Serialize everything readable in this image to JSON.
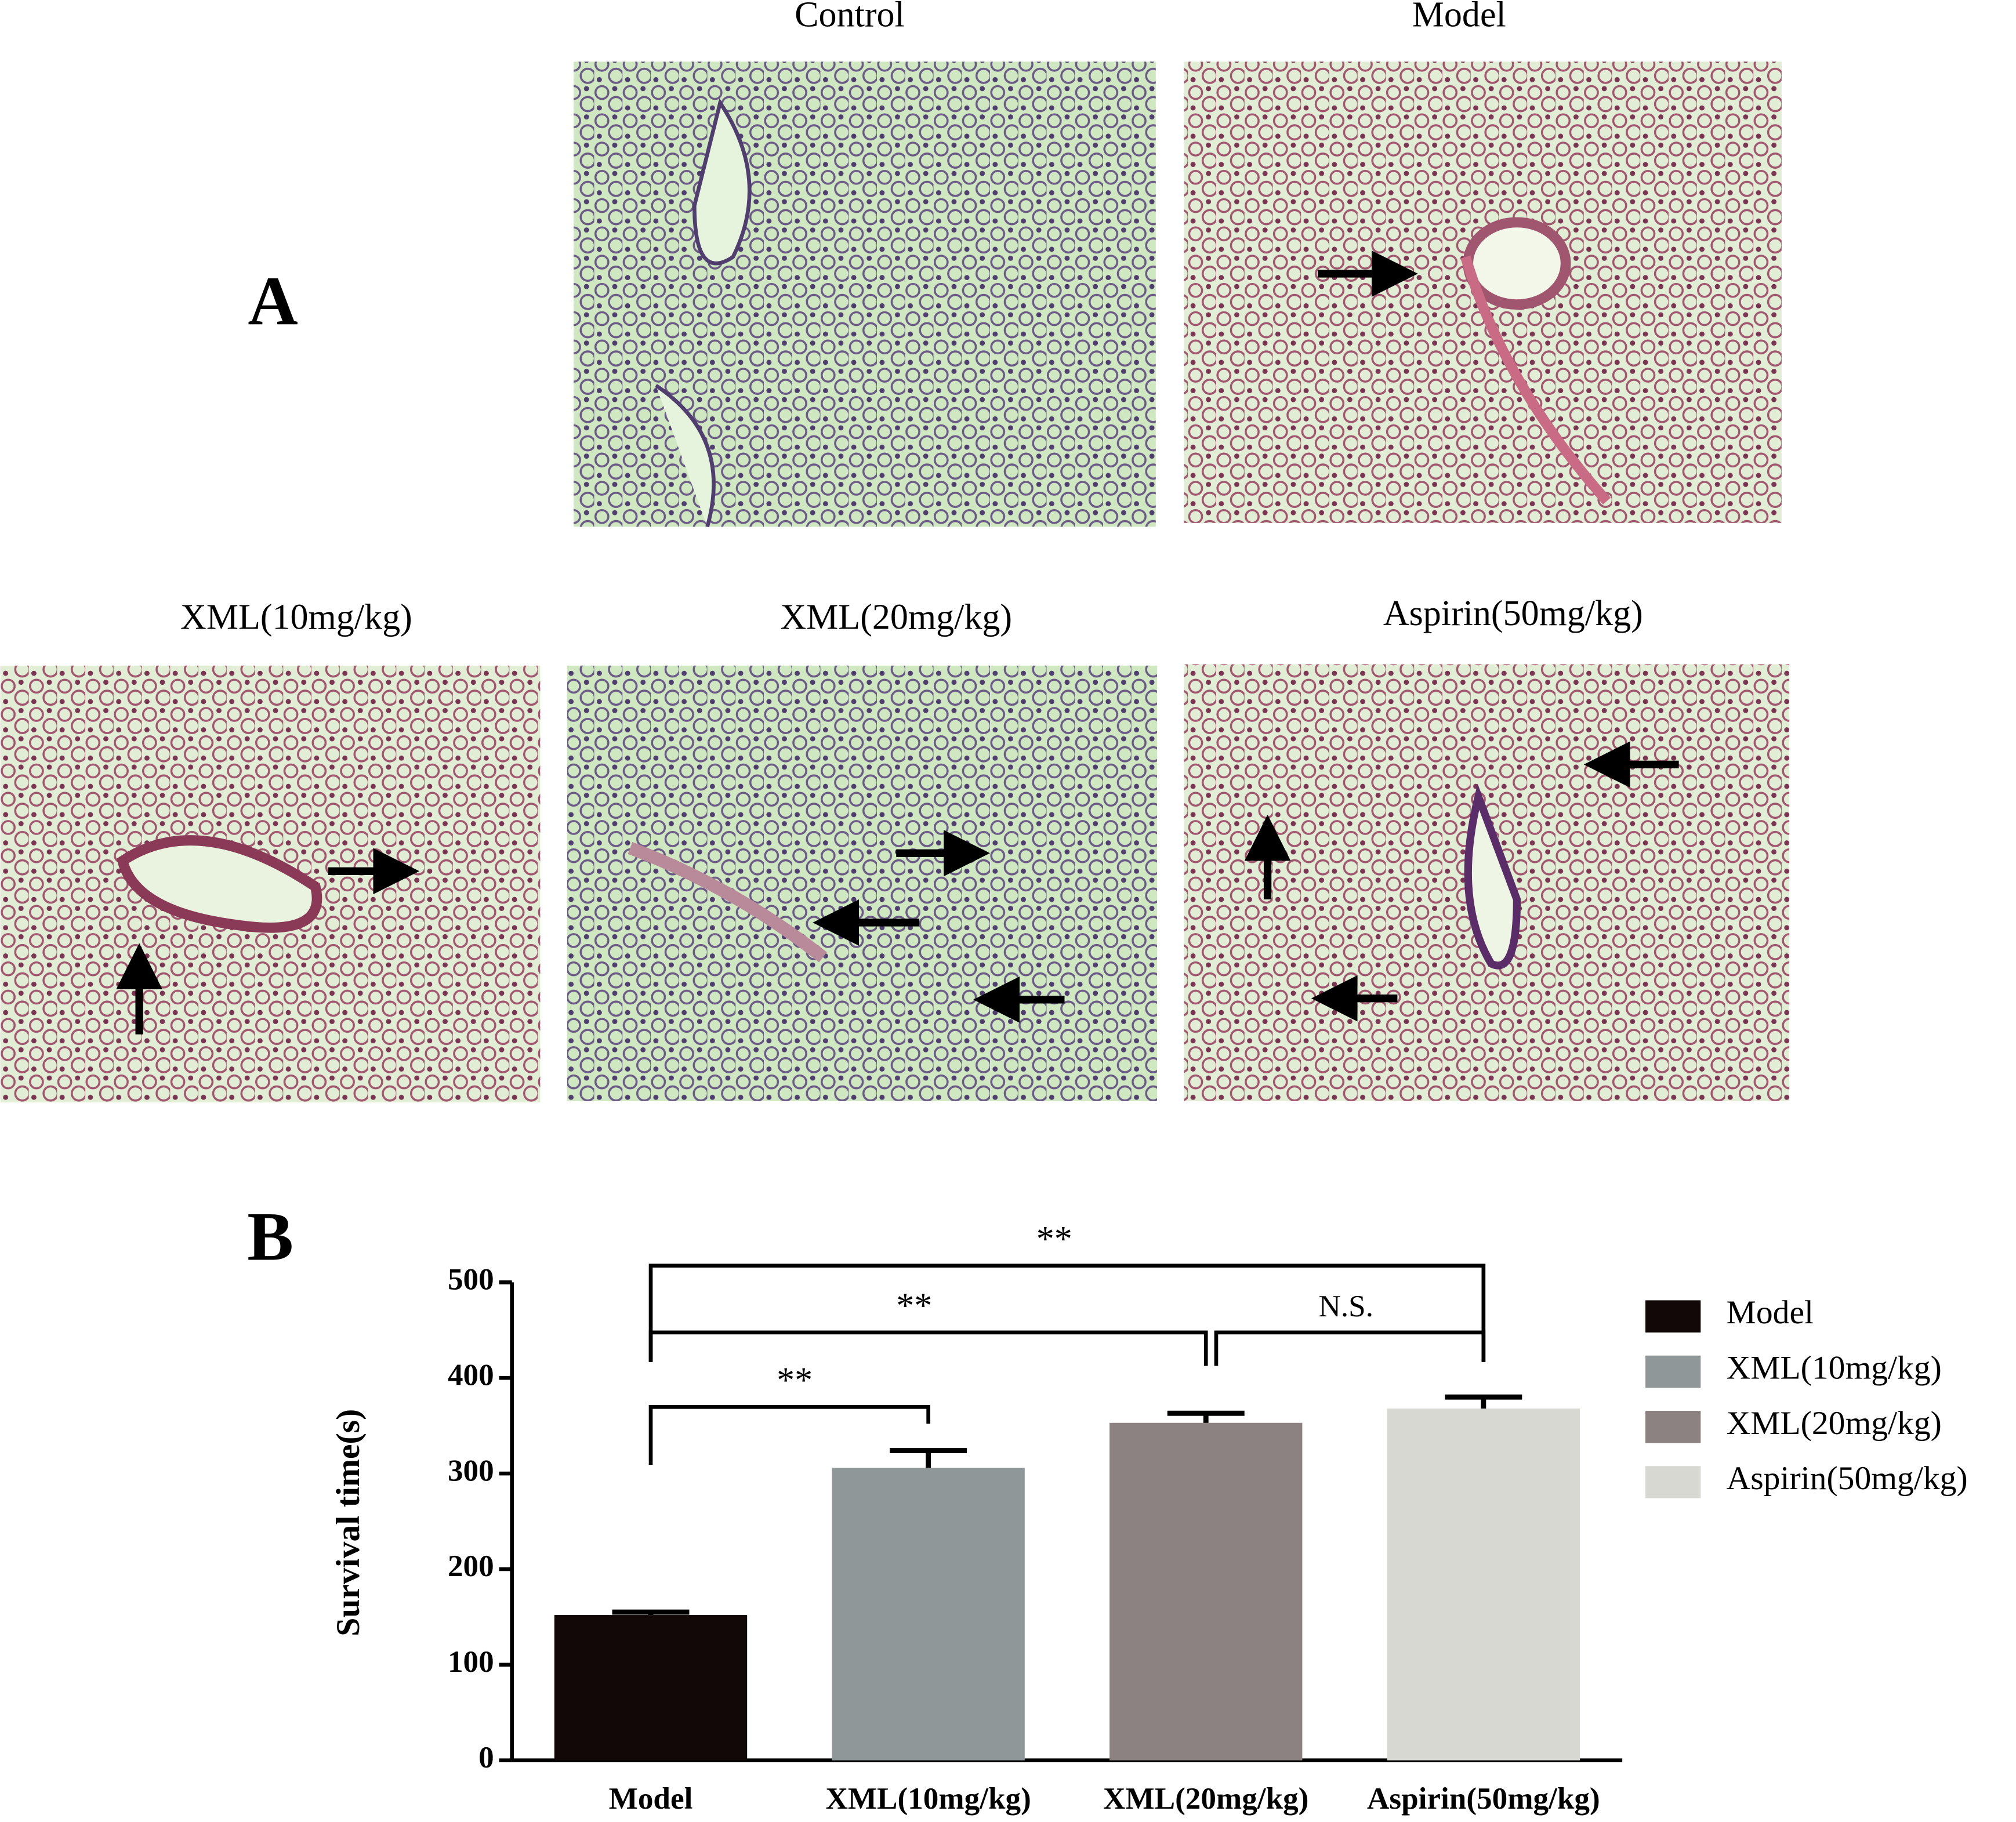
{
  "panel_a": {
    "label": "A",
    "images": [
      {
        "label": "Control"
      },
      {
        "label": "Model"
      },
      {
        "label": "XML(10mg/kg)"
      },
      {
        "label": "XML(20mg/kg)"
      },
      {
        "label": "Aspirin(50mg/kg)"
      }
    ]
  },
  "chart_data": {
    "type": "bar",
    "panel_label": "B",
    "ylabel": "Survival time(s)",
    "categories": [
      "Model",
      "XML(10mg/kg)",
      "XML(20mg/kg)",
      "Aspirin(50mg/kg)"
    ],
    "values": [
      152,
      306,
      353,
      368
    ],
    "errors": [
      3,
      18,
      10,
      12
    ],
    "colors": [
      "#130808",
      "#8f9799",
      "#8c8282",
      "#d8d8d2"
    ],
    "ylim": [
      0,
      500
    ],
    "yticks": [
      0,
      100,
      200,
      300,
      400,
      500
    ],
    "legend": "right",
    "annotations": [
      "**",
      "**",
      "**",
      "N.S."
    ]
  }
}
